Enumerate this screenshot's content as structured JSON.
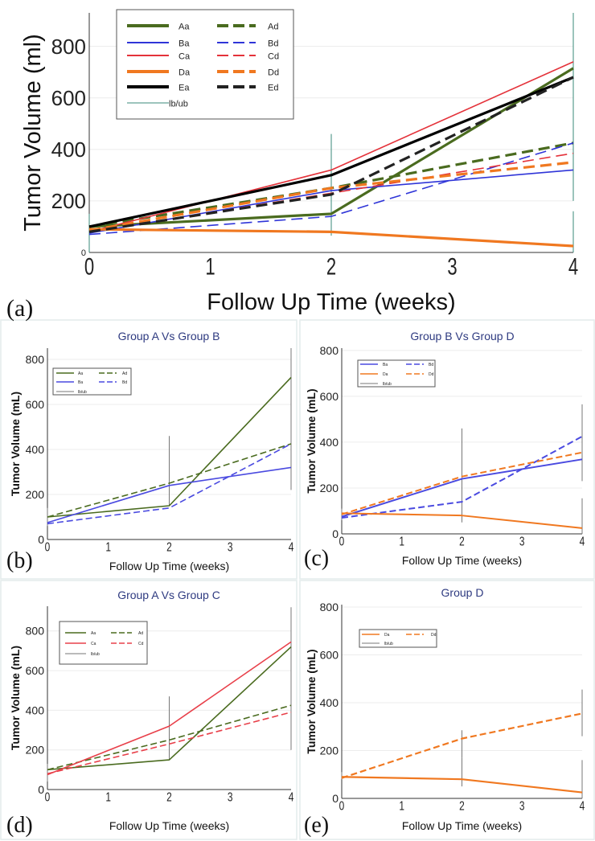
{
  "chart_data": [
    {
      "type": "line",
      "panel_label": "(a)",
      "title": "",
      "xlabel": "Follow Up Time (weeks)",
      "ylabel": "Tumor Volume (ml)",
      "xlim": [
        0,
        4
      ],
      "ylim": [
        0,
        930
      ],
      "xticks": [
        "0",
        "1",
        "2",
        "3",
        "4"
      ],
      "yticks": [
        "0",
        "200",
        "400",
        "600",
        "800"
      ],
      "grid": true,
      "legend_placement": "top-left",
      "series": [
        {
          "name": "Aa",
          "color": "#4a6b1f",
          "dashed": false,
          "x": [
            0,
            2,
            4
          ],
          "y": [
            100,
            150,
            715
          ]
        },
        {
          "name": "Ad",
          "color": "#4a6b1f",
          "dashed": true,
          "x": [
            0,
            2,
            4
          ],
          "y": [
            100,
            250,
            425
          ]
        },
        {
          "name": "Ba",
          "color": "#2f35d8",
          "dashed": false,
          "x": [
            0,
            2,
            4
          ],
          "y": [
            75,
            240,
            320
          ]
        },
        {
          "name": "Bd",
          "color": "#2f35d8",
          "dashed": true,
          "x": [
            0,
            2,
            4
          ],
          "y": [
            70,
            140,
            425
          ]
        },
        {
          "name": "Ca",
          "color": "#e4323a",
          "dashed": false,
          "x": [
            0,
            2,
            4
          ],
          "y": [
            80,
            320,
            740
          ]
        },
        {
          "name": "Cd",
          "color": "#e4323a",
          "dashed": true,
          "x": [
            0,
            2,
            4
          ],
          "y": [
            80,
            230,
            385
          ]
        },
        {
          "name": "Da",
          "color": "#f07820",
          "dashed": false,
          "x": [
            0,
            2,
            4
          ],
          "y": [
            90,
            80,
            25
          ]
        },
        {
          "name": "Dd",
          "color": "#f07820",
          "dashed": true,
          "x": [
            0,
            2,
            4
          ],
          "y": [
            85,
            250,
            350
          ]
        },
        {
          "name": "Ea",
          "color": "#000000",
          "dashed": false,
          "x": [
            0,
            2,
            4
          ],
          "y": [
            100,
            300,
            680
          ]
        },
        {
          "name": "Ed",
          "color": "#222222",
          "dashed": true,
          "x": [
            0,
            2,
            4
          ],
          "y": [
            80,
            225,
            680
          ]
        }
      ],
      "bounds_label": "lb/ub",
      "bounds_color": "#3a8a7a",
      "bounds": [
        {
          "x": 0,
          "lb": 0,
          "ub": 150
        },
        {
          "x": 2,
          "lb": 65,
          "ub": 460
        },
        {
          "x": 4,
          "lb": 200,
          "ub": 930
        },
        {
          "x": 4,
          "lb": 0,
          "ub": 160
        }
      ]
    },
    {
      "type": "line",
      "panel_label": "(b)",
      "title": "Group A Vs Group B",
      "xlabel": "Follow Up Time (weeks)",
      "ylabel": "Tumor Volume (mL)",
      "xlim": [
        0,
        4
      ],
      "ylim": [
        0,
        850
      ],
      "xticks": [
        "0",
        "1",
        "2",
        "3",
        "4"
      ],
      "yticks": [
        "0",
        "200",
        "400",
        "600",
        "800"
      ],
      "grid": true,
      "legend_placement": "top-left",
      "series": [
        {
          "name": "Aa",
          "color": "#4a6b1f",
          "dashed": false,
          "x": [
            0,
            2,
            4
          ],
          "y": [
            100,
            150,
            720
          ]
        },
        {
          "name": "Ad",
          "color": "#4a6b1f",
          "dashed": true,
          "x": [
            0,
            2,
            4
          ],
          "y": [
            100,
            250,
            425
          ]
        },
        {
          "name": "Ba",
          "color": "#4a4ae0",
          "dashed": false,
          "x": [
            0,
            2,
            4
          ],
          "y": [
            75,
            240,
            320
          ]
        },
        {
          "name": "Bd",
          "color": "#4a4ae0",
          "dashed": true,
          "x": [
            0,
            2,
            4
          ],
          "y": [
            70,
            140,
            425
          ]
        }
      ],
      "bounds_label": "lb/ub",
      "bounds_color": "#777777",
      "bounds": [
        {
          "x": 0,
          "lb": 60,
          "ub": 140
        },
        {
          "x": 2,
          "lb": 150,
          "ub": 460
        },
        {
          "x": 4,
          "lb": 220,
          "ub": 850
        }
      ]
    },
    {
      "type": "line",
      "panel_label": "(c)",
      "title": "Group B Vs Group D",
      "xlabel": "Follow Up Time (weeks)",
      "ylabel": "Tumor Volume (mL)",
      "xlim": [
        0,
        4
      ],
      "ylim": [
        0,
        810
      ],
      "xticks": [
        "0",
        "1",
        "2",
        "3",
        "4"
      ],
      "yticks": [
        "0",
        "200",
        "400",
        "600",
        "800"
      ],
      "grid": true,
      "legend_placement": "top-left",
      "series": [
        {
          "name": "Ba",
          "color": "#4a4ae0",
          "dashed": false,
          "x": [
            0,
            2,
            4
          ],
          "y": [
            75,
            240,
            325
          ]
        },
        {
          "name": "Bd",
          "color": "#4a4ae0",
          "dashed": true,
          "x": [
            0,
            2,
            4
          ],
          "y": [
            70,
            140,
            425
          ]
        },
        {
          "name": "Da",
          "color": "#f07820",
          "dashed": false,
          "x": [
            0,
            2,
            4
          ],
          "y": [
            90,
            80,
            25
          ]
        },
        {
          "name": "Dd",
          "color": "#f07820",
          "dashed": true,
          "x": [
            0,
            2,
            4
          ],
          "y": [
            85,
            250,
            355
          ]
        }
      ],
      "bounds_label": "lb/ub",
      "bounds_color": "#777777",
      "bounds": [
        {
          "x": 0,
          "lb": 60,
          "ub": 110
        },
        {
          "x": 2,
          "lb": 50,
          "ub": 460
        },
        {
          "x": 4,
          "lb": 230,
          "ub": 565
        },
        {
          "x": 4,
          "lb": 0,
          "ub": 155
        }
      ]
    },
    {
      "type": "line",
      "panel_label": "(d)",
      "title": "Group A Vs Group C",
      "xlabel": "Follow Up Time (weeks)",
      "ylabel": "Tumor Volume (mL)",
      "xlim": [
        0,
        4
      ],
      "ylim": [
        0,
        925
      ],
      "xticks": [
        "0",
        "1",
        "2",
        "3",
        "4"
      ],
      "yticks": [
        "0",
        "200",
        "400",
        "600",
        "800"
      ],
      "grid": true,
      "legend_placement": "top-left",
      "series": [
        {
          "name": "Aa",
          "color": "#4a6b1f",
          "dashed": false,
          "x": [
            0,
            2,
            4
          ],
          "y": [
            100,
            150,
            720
          ]
        },
        {
          "name": "Ad",
          "color": "#4a6b1f",
          "dashed": true,
          "x": [
            0,
            2,
            4
          ],
          "y": [
            100,
            250,
            425
          ]
        },
        {
          "name": "Ca",
          "color": "#e8404a",
          "dashed": false,
          "x": [
            0,
            2,
            4
          ],
          "y": [
            75,
            320,
            745
          ]
        },
        {
          "name": "Cd",
          "color": "#e8404a",
          "dashed": true,
          "x": [
            0,
            2,
            4
          ],
          "y": [
            80,
            230,
            390
          ]
        }
      ],
      "bounds_label": "lb/ub",
      "bounds_color": "#777777",
      "bounds": [
        {
          "x": 0,
          "lb": 40,
          "ub": 130
        },
        {
          "x": 2,
          "lb": 150,
          "ub": 470
        },
        {
          "x": 4,
          "lb": 200,
          "ub": 920
        }
      ]
    },
    {
      "type": "line",
      "panel_label": "(e)",
      "title": "Group D",
      "xlabel": "Follow Up Time (weeks)",
      "ylabel": "Tumor Volume (mL)",
      "xlim": [
        0,
        4
      ],
      "ylim": [
        0,
        810
      ],
      "xticks": [
        "0",
        "1",
        "2",
        "3",
        "4"
      ],
      "yticks": [
        "0",
        "200",
        "400",
        "600",
        "800"
      ],
      "grid": true,
      "legend_placement": "top-left",
      "series": [
        {
          "name": "Da",
          "color": "#f07820",
          "dashed": false,
          "x": [
            0,
            2,
            4
          ],
          "y": [
            90,
            80,
            25
          ]
        },
        {
          "name": "Dd",
          "color": "#f07820",
          "dashed": true,
          "x": [
            0,
            2,
            4
          ],
          "y": [
            85,
            250,
            355
          ]
        }
      ],
      "bounds_label": "lb/ub",
      "bounds_color": "#777777",
      "bounds": [
        {
          "x": 0,
          "lb": 80,
          "ub": 110
        },
        {
          "x": 2,
          "lb": 170,
          "ub": 285
        },
        {
          "x": 2,
          "lb": 50,
          "ub": 170
        },
        {
          "x": 4,
          "lb": 260,
          "ub": 455
        },
        {
          "x": 4,
          "lb": 0,
          "ub": 160
        }
      ]
    }
  ]
}
